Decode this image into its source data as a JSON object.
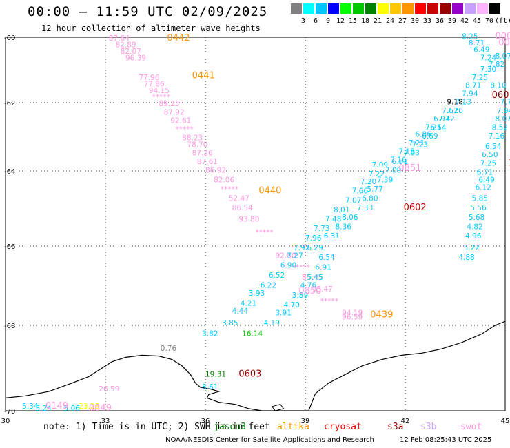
{
  "header": {
    "title": "00:00 – 11:59 UTC 02/09/2025",
    "subtitle": "12 hour collection of altimeter wave heights"
  },
  "colorbar": {
    "labels": [
      "3",
      "6",
      "9",
      "12",
      "15",
      "18",
      "21",
      "24",
      "27",
      "30",
      "33",
      "36",
      "39",
      "42",
      "45",
      "70",
      "(ft)"
    ],
    "colors": [
      "#808080",
      "#00ffff",
      "#00c8ff",
      "#0000ff",
      "#00ff00",
      "#00c800",
      "#008000",
      "#ffff00",
      "#ffc800",
      "#ff9600",
      "#ff0000",
      "#c80000",
      "#960000",
      "#9600c8",
      "#c8a0ff",
      "#ffb4ff",
      "#000000"
    ]
  },
  "map": {
    "lon_ticks": [
      "30",
      "33",
      "36",
      "39",
      "42",
      "45"
    ],
    "lat_ticks": [
      "-60",
      "-62",
      "-64",
      "-66",
      "-68",
      "-70"
    ],
    "track_labels": [
      {
        "text": "0442",
        "color": "#ff9600",
        "lon": 34.85,
        "lat": -60.1
      },
      {
        "text": "0441",
        "color": "#ff9600",
        "lon": 35.6,
        "lat": -61.25
      },
      {
        "text": "0440",
        "color": "#ff9600",
        "lon": 37.6,
        "lat": -64.6
      },
      {
        "text": "0439",
        "color": "#ff9600",
        "lon": 40.95,
        "lat": -67.8
      },
      {
        "text": "0850",
        "color": "#ff96e0",
        "lon": 38.8,
        "lat": -67.2
      },
      {
        "text": "0851",
        "color": "#ff96e0",
        "lon": 41.8,
        "lat": -64.0
      },
      {
        "text": "0602",
        "color": "#c80000",
        "lon": 41.95,
        "lat": -65.05
      },
      {
        "text": "0601",
        "color": "#960000",
        "lon": 44.6,
        "lat": -61.85
      },
      {
        "text": "0603",
        "color": "#960000",
        "lon": 37.0,
        "lat": -69.2
      },
      {
        "text": "0007",
        "color": "#ff96e0",
        "lon": 44.7,
        "lat": -60.05
      },
      {
        "text": "0008",
        "color": "#ff96e0",
        "lon": 44.8,
        "lat": -60.25
      },
      {
        "text": "100.",
        "color": "#ff0000",
        "lon": 45.1,
        "lat": -63.85
      },
      {
        "text": "0149",
        "color": "#ff96e0",
        "lon": 31.2,
        "lat": -69.95
      },
      {
        "text": "0849",
        "color": "#ff96e0",
        "lon": 32.5,
        "lat": -70.15
      }
    ],
    "values": [
      {
        "text": "87.64",
        "color": "#ff96e0",
        "lon": 33.1,
        "lat": -60.1
      },
      {
        "text": "82.89",
        "color": "#ff96e0",
        "lon": 33.3,
        "lat": -60.3
      },
      {
        "text": "82.07",
        "color": "#ff96e0",
        "lon": 33.45,
        "lat": -60.5
      },
      {
        "text": "96.39",
        "color": "#ff96e0",
        "lon": 33.6,
        "lat": -60.7
      },
      {
        "text": "77.96",
        "color": "#ff96e0",
        "lon": 34.0,
        "lat": -61.3
      },
      {
        "text": "77.86",
        "color": "#ff96e0",
        "lon": 34.15,
        "lat": -61.5
      },
      {
        "text": "94.15",
        "color": "#ff96e0",
        "lon": 34.3,
        "lat": -61.7
      },
      {
        "text": "*****",
        "color": "#ff96e0",
        "lon": 34.4,
        "lat": -61.9
      },
      {
        "text": "89.23",
        "color": "#ff96e0",
        "lon": 34.6,
        "lat": -62.1
      },
      {
        "text": "87.92",
        "color": "#ff96e0",
        "lon": 34.75,
        "lat": -62.35
      },
      {
        "text": "92.61",
        "color": "#ff96e0",
        "lon": 34.95,
        "lat": -62.6
      },
      {
        "text": "*****",
        "color": "#ff96e0",
        "lon": 35.1,
        "lat": -62.85
      },
      {
        "text": "88.23",
        "color": "#ff96e0",
        "lon": 35.3,
        "lat": -63.1
      },
      {
        "text": "78.70",
        "color": "#ff96e0",
        "lon": 35.45,
        "lat": -63.3
      },
      {
        "text": "87.26",
        "color": "#ff96e0",
        "lon": 35.6,
        "lat": -63.55
      },
      {
        "text": "87.61",
        "color": "#ff96e0",
        "lon": 35.75,
        "lat": -63.8
      },
      {
        "text": "86.92",
        "color": "#ff96e0",
        "lon": 36.0,
        "lat": -64.05
      },
      {
        "text": "82.06",
        "color": "#ff96e0",
        "lon": 36.25,
        "lat": -64.3
      },
      {
        "text": "*****",
        "color": "#ff96e0",
        "lon": 36.45,
        "lat": -64.55
      },
      {
        "text": "52.47",
        "color": "#ff96e0",
        "lon": 36.7,
        "lat": -64.8
      },
      {
        "text": "86.54",
        "color": "#ff96e0",
        "lon": 36.8,
        "lat": -65.05
      },
      {
        "text": "93.80",
        "color": "#ff96e0",
        "lon": 37.0,
        "lat": -65.35
      },
      {
        "text": "*****",
        "color": "#ff96e0",
        "lon": 37.5,
        "lat": -65.7
      },
      {
        "text": "92.80",
        "color": "#ff96e0",
        "lon": 38.1,
        "lat": -66.3
      },
      {
        "text": "*****",
        "color": "#ff96e0",
        "lon": 38.6,
        "lat": -66.6
      },
      {
        "text": "85.45",
        "color": "#ff96e0",
        "lon": 38.9,
        "lat": -66.85
      },
      {
        "text": "93.47",
        "color": "#ff96e0",
        "lon": 39.2,
        "lat": -67.15
      },
      {
        "text": "*****",
        "color": "#ff96e0",
        "lon": 39.45,
        "lat": -67.45
      },
      {
        "text": "94.19",
        "color": "#ff96e0",
        "lon": 40.1,
        "lat": -67.75
      },
      {
        "text": "96.59",
        "color": "#ff96e0",
        "lon": 40.1,
        "lat": -67.85
      },
      {
        "text": "7.92",
        "color": "#00c8ff",
        "lon": 38.65,
        "lat": -66.1
      },
      {
        "text": "7.27",
        "color": "#00c8ff",
        "lon": 38.45,
        "lat": -66.3
      },
      {
        "text": "6.90",
        "color": "#00c8ff",
        "lon": 38.25,
        "lat": -66.55
      },
      {
        "text": "6.52",
        "color": "#00c8ff",
        "lon": 37.9,
        "lat": -66.8
      },
      {
        "text": "6.22",
        "color": "#00c8ff",
        "lon": 37.65,
        "lat": -67.05
      },
      {
        "text": "3.93",
        "color": "#00c8ff",
        "lon": 37.3,
        "lat": -67.25
      },
      {
        "text": "4.21",
        "color": "#00c8ff",
        "lon": 37.05,
        "lat": -67.5
      },
      {
        "text": "4.44",
        "color": "#00c8ff",
        "lon": 36.8,
        "lat": -67.7
      },
      {
        "text": "3.85",
        "color": "#00c8ff",
        "lon": 36.5,
        "lat": -68.0
      },
      {
        "text": "3.82",
        "color": "#00c8ff",
        "lon": 35.9,
        "lat": -68.25
      },
      {
        "text": "7.96",
        "color": "#00c8ff",
        "lon": 39.0,
        "lat": -65.85
      },
      {
        "text": "7.73",
        "color": "#00c8ff",
        "lon": 39.25,
        "lat": -65.6
      },
      {
        "text": "7.48",
        "color": "#00c8ff",
        "lon": 39.6,
        "lat": -65.35
      },
      {
        "text": "8.01",
        "color": "#00c8ff",
        "lon": 39.85,
        "lat": -65.1
      },
      {
        "text": "7.07",
        "color": "#00c8ff",
        "lon": 40.2,
        "lat": -64.85
      },
      {
        "text": "7.66",
        "color": "#00c8ff",
        "lon": 40.4,
        "lat": -64.6
      },
      {
        "text": "7.20",
        "color": "#00c8ff",
        "lon": 40.65,
        "lat": -64.35
      },
      {
        "text": "7.22",
        "color": "#00c8ff",
        "lon": 40.9,
        "lat": -64.15
      },
      {
        "text": "7.09",
        "color": "#00c8ff",
        "lon": 41.0,
        "lat": -63.9
      },
      {
        "text": "7.16",
        "color": "#00c8ff",
        "lon": 41.55,
        "lat": -63.75
      },
      {
        "text": "7.15",
        "color": "#00c8ff",
        "lon": 41.8,
        "lat": -63.5
      },
      {
        "text": "7.21",
        "color": "#00c8ff",
        "lon": 42.1,
        "lat": -63.25
      },
      {
        "text": "6.86",
        "color": "#00c8ff",
        "lon": 42.3,
        "lat": -63.0
      },
      {
        "text": "7.21",
        "color": "#00c8ff",
        "lon": 42.6,
        "lat": -62.8
      },
      {
        "text": "6.97",
        "color": "#00c8ff",
        "lon": 42.85,
        "lat": -62.55
      },
      {
        "text": "7.67",
        "color": "#00c8ff",
        "lon": 43.1,
        "lat": -62.3
      },
      {
        "text": "9.18",
        "color": "#000000",
        "lon": 43.25,
        "lat": -62.05
      },
      {
        "text": "6.29",
        "color": "#00c8ff",
        "lon": 39.05,
        "lat": -66.1
      },
      {
        "text": "6.54",
        "color": "#00c8ff",
        "lon": 39.4,
        "lat": -66.35
      },
      {
        "text": "6.91",
        "color": "#00c8ff",
        "lon": 39.3,
        "lat": -66.6
      },
      {
        "text": "5.45",
        "color": "#00c8ff",
        "lon": 39.05,
        "lat": -66.85
      },
      {
        "text": "4.76",
        "color": "#00c8ff",
        "lon": 38.85,
        "lat": -67.05
      },
      {
        "text": "3.89",
        "color": "#00c8ff",
        "lon": 38.6,
        "lat": -67.3
      },
      {
        "text": "4.70",
        "color": "#00c8ff",
        "lon": 38.35,
        "lat": -67.55
      },
      {
        "text": "3.91",
        "color": "#00c8ff",
        "lon": 38.1,
        "lat": -67.75
      },
      {
        "text": "4.19",
        "color": "#00c8ff",
        "lon": 37.75,
        "lat": -68.0
      },
      {
        "text": "16.14",
        "color": "#00c800",
        "lon": 37.1,
        "lat": -68.25
      },
      {
        "text": "6.31",
        "color": "#00c8ff",
        "lon": 39.55,
        "lat": -65.8
      },
      {
        "text": "8.36",
        "color": "#00c8ff",
        "lon": 39.9,
        "lat": -65.55
      },
      {
        "text": "8.06",
        "color": "#00c8ff",
        "lon": 40.1,
        "lat": -65.3
      },
      {
        "text": "7.33",
        "color": "#00c8ff",
        "lon": 40.55,
        "lat": -65.05
      },
      {
        "text": "6.80",
        "color": "#00c8ff",
        "lon": 40.7,
        "lat": -64.8
      },
      {
        "text": "5.77",
        "color": "#00c8ff",
        "lon": 40.85,
        "lat": -64.55
      },
      {
        "text": "7.39",
        "color": "#00c8ff",
        "lon": 41.15,
        "lat": -64.3
      },
      {
        "text": "7.09",
        "color": "#00c8ff",
        "lon": 41.4,
        "lat": -64.05
      },
      {
        "text": "6.51",
        "color": "#00c8ff",
        "lon": 41.6,
        "lat": -63.8
      },
      {
        "text": "7.03",
        "color": "#00c8ff",
        "lon": 41.95,
        "lat": -63.55
      },
      {
        "text": "7.23",
        "color": "#00c8ff",
        "lon": 42.2,
        "lat": -63.3
      },
      {
        "text": "6.69",
        "color": "#00c8ff",
        "lon": 42.5,
        "lat": -63.05
      },
      {
        "text": "6.54",
        "color": "#00c8ff",
        "lon": 42.75,
        "lat": -62.8
      },
      {
        "text": "7.42",
        "color": "#00c8ff",
        "lon": 43.0,
        "lat": -62.55
      },
      {
        "text": "7.26",
        "color": "#00c8ff",
        "lon": 43.25,
        "lat": -62.3
      },
      {
        "text": "7.13",
        "color": "#00c8ff",
        "lon": 43.5,
        "lat": -62.05
      },
      {
        "text": "7.94",
        "color": "#00c8ff",
        "lon": 43.7,
        "lat": -61.8
      },
      {
        "text": "8.71",
        "color": "#00c8ff",
        "lon": 43.8,
        "lat": -61.55
      },
      {
        "text": "7.25",
        "color": "#00c8ff",
        "lon": 44.0,
        "lat": -61.3
      },
      {
        "text": "7.30",
        "color": "#00c8ff",
        "lon": 44.25,
        "lat": -61.05
      },
      {
        "text": "7.24",
        "color": "#00c8ff",
        "lon": 44.25,
        "lat": -60.7
      },
      {
        "text": "6.49",
        "color": "#00c8ff",
        "lon": 44.05,
        "lat": -60.45
      },
      {
        "text": "8.71",
        "color": "#00c8ff",
        "lon": 43.9,
        "lat": -60.25
      },
      {
        "text": "8.25",
        "color": "#00c8ff",
        "lon": 43.7,
        "lat": -60.05
      },
      {
        "text": "7.82",
        "color": "#00c8ff",
        "lon": 44.5,
        "lat": -60.9
      },
      {
        "text": "8.07",
        "color": "#00c8ff",
        "lon": 44.7,
        "lat": -60.65
      },
      {
        "text": "8.10",
        "color": "#00c8ff",
        "lon": 44.55,
        "lat": -61.55
      },
      {
        "text": "7.74",
        "color": "#00c8ff",
        "lon": 44.85,
        "lat": -62.05
      },
      {
        "text": "7.94",
        "color": "#00c8ff",
        "lon": 44.75,
        "lat": -62.3
      },
      {
        "text": "8.07",
        "color": "#00c8ff",
        "lon": 44.7,
        "lat": -62.55
      },
      {
        "text": "8.52",
        "color": "#00c8ff",
        "lon": 44.6,
        "lat": -62.8
      },
      {
        "text": "7.16",
        "color": "#00c8ff",
        "lon": 44.5,
        "lat": -63.05
      },
      {
        "text": "6.54",
        "color": "#00c8ff",
        "lon": 44.4,
        "lat": -63.35
      },
      {
        "text": "6.50",
        "color": "#00c8ff",
        "lon": 44.3,
        "lat": -63.6
      },
      {
        "text": "7.25",
        "color": "#00c8ff",
        "lon": 44.25,
        "lat": -63.85
      },
      {
        "text": "6.71",
        "color": "#00c8ff",
        "lon": 44.15,
        "lat": -64.1
      },
      {
        "text": "6.49",
        "color": "#00c8ff",
        "lon": 44.2,
        "lat": -64.3
      },
      {
        "text": "6.12",
        "color": "#00c8ff",
        "lon": 44.1,
        "lat": -64.5
      },
      {
        "text": "5.85",
        "color": "#00c8ff",
        "lon": 44.0,
        "lat": -64.8
      },
      {
        "text": "5.56",
        "color": "#00c8ff",
        "lon": 43.95,
        "lat": -65.05
      },
      {
        "text": "5.68",
        "color": "#00c8ff",
        "lon": 43.9,
        "lat": -65.3
      },
      {
        "text": "4.82",
        "color": "#00c8ff",
        "lon": 43.85,
        "lat": -65.55
      },
      {
        "text": "4.96",
        "color": "#00c8ff",
        "lon": 43.8,
        "lat": -65.8
      },
      {
        "text": "5.22",
        "color": "#00c8ff",
        "lon": 43.75,
        "lat": -66.1
      },
      {
        "text": "4.88",
        "color": "#00c8ff",
        "lon": 43.6,
        "lat": -66.35
      },
      {
        "text": "0.76",
        "color": "#808080",
        "lon": 34.65,
        "lat": -68.6
      },
      {
        "text": "19.31",
        "color": "#008000",
        "lon": 36.0,
        "lat": -69.2
      },
      {
        "text": "8.61",
        "color": "#00c8ff",
        "lon": 35.9,
        "lat": -69.5
      },
      {
        "text": "26.59",
        "color": "#ff96e0",
        "lon": 32.8,
        "lat": -69.55
      },
      {
        "text": "5.34",
        "color": "#00c8ff",
        "lon": 30.5,
        "lat": -69.95
      },
      {
        "text": "23.28",
        "color": "#ffff00",
        "lon": 32.2,
        "lat": -69.95
      },
      {
        "text": "5.24",
        "color": "#00c8ff",
        "lon": 30.9,
        "lat": -70.15
      },
      {
        "text": "5.06",
        "color": "#00c8ff",
        "lon": 31.75,
        "lat": -70.2
      }
    ]
  },
  "footer": {
    "note": "note: 1) Time is in UTC; 2) SWH is in feet",
    "legend": [
      {
        "name": "jason3",
        "color": "#008000"
      },
      {
        "name": "altika",
        "color": "#ff9600"
      },
      {
        "name": "cryosat",
        "color": "#ff0000"
      },
      {
        "name": "s3a",
        "color": "#960000"
      },
      {
        "name": "s3b",
        "color": "#c8a0ff"
      },
      {
        "name": "swot",
        "color": "#ff96e0"
      }
    ],
    "credit": "NOAA/NESDIS Center for Satellite Applications and Research",
    "timestamp": "12 Feb 08:25:43 UTC 2025"
  }
}
